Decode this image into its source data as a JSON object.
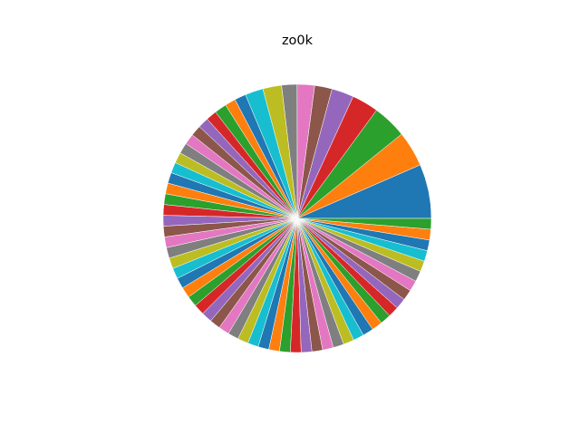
{
  "chart_data": {
    "type": "pie",
    "title": "zo0k",
    "start_angle_deg": 0,
    "direction": "counterclockwise",
    "legend": "none",
    "labels_shown": false,
    "values": [
      8.1,
      5.3,
      5.1,
      4.0,
      3.3,
      2.6,
      2.6,
      2.3,
      2.8,
      2.7,
      1.7,
      1.6,
      1.8,
      1.6,
      1.6,
      1.6,
      1.6,
      1.6,
      1.6,
      1.6,
      1.6,
      1.6,
      1.6,
      1.6,
      1.6,
      1.6,
      1.6,
      1.6,
      1.6,
      1.6,
      1.6,
      1.6,
      1.6,
      1.6,
      1.6,
      1.6,
      1.6,
      1.6,
      1.6,
      1.6,
      1.6,
      1.6,
      1.6,
      1.6,
      1.6,
      1.6,
      1.6,
      1.6,
      1.6,
      1.6,
      1.6,
      1.6,
      1.6,
      1.6,
      1.6,
      1.6,
      1.6,
      1.6,
      1.6,
      1.6,
      1.6,
      1.6,
      1.6
    ],
    "colors": [
      "#1f77b4",
      "#ff7f0e",
      "#2ca02c",
      "#d62728",
      "#9467bd",
      "#8c564b",
      "#e377c2",
      "#7f7f7f",
      "#bcbd22",
      "#17becf"
    ]
  }
}
